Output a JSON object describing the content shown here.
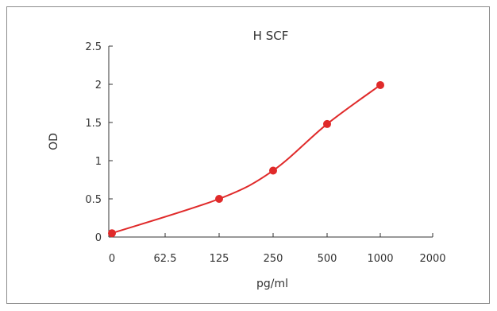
{
  "chart_data": {
    "type": "scatter",
    "title": "H SCF",
    "xlabel": "pg/ml",
    "ylabel": "OD",
    "x_tick_labels": [
      "0",
      "62.5",
      "125",
      "250",
      "500",
      "1000",
      "2000"
    ],
    "y_tick_labels": [
      "0",
      "0.5",
      "1",
      "1.5",
      "2",
      "2.5"
    ],
    "ylim": [
      0,
      2.5
    ],
    "grid": false,
    "series": [
      {
        "x": [
          "0",
          "125",
          "250",
          "500",
          "1000"
        ],
        "y": [
          0.05,
          0.5,
          0.87,
          1.48,
          1.99
        ],
        "color": "#e02a2a",
        "line": "smooth"
      }
    ]
  }
}
